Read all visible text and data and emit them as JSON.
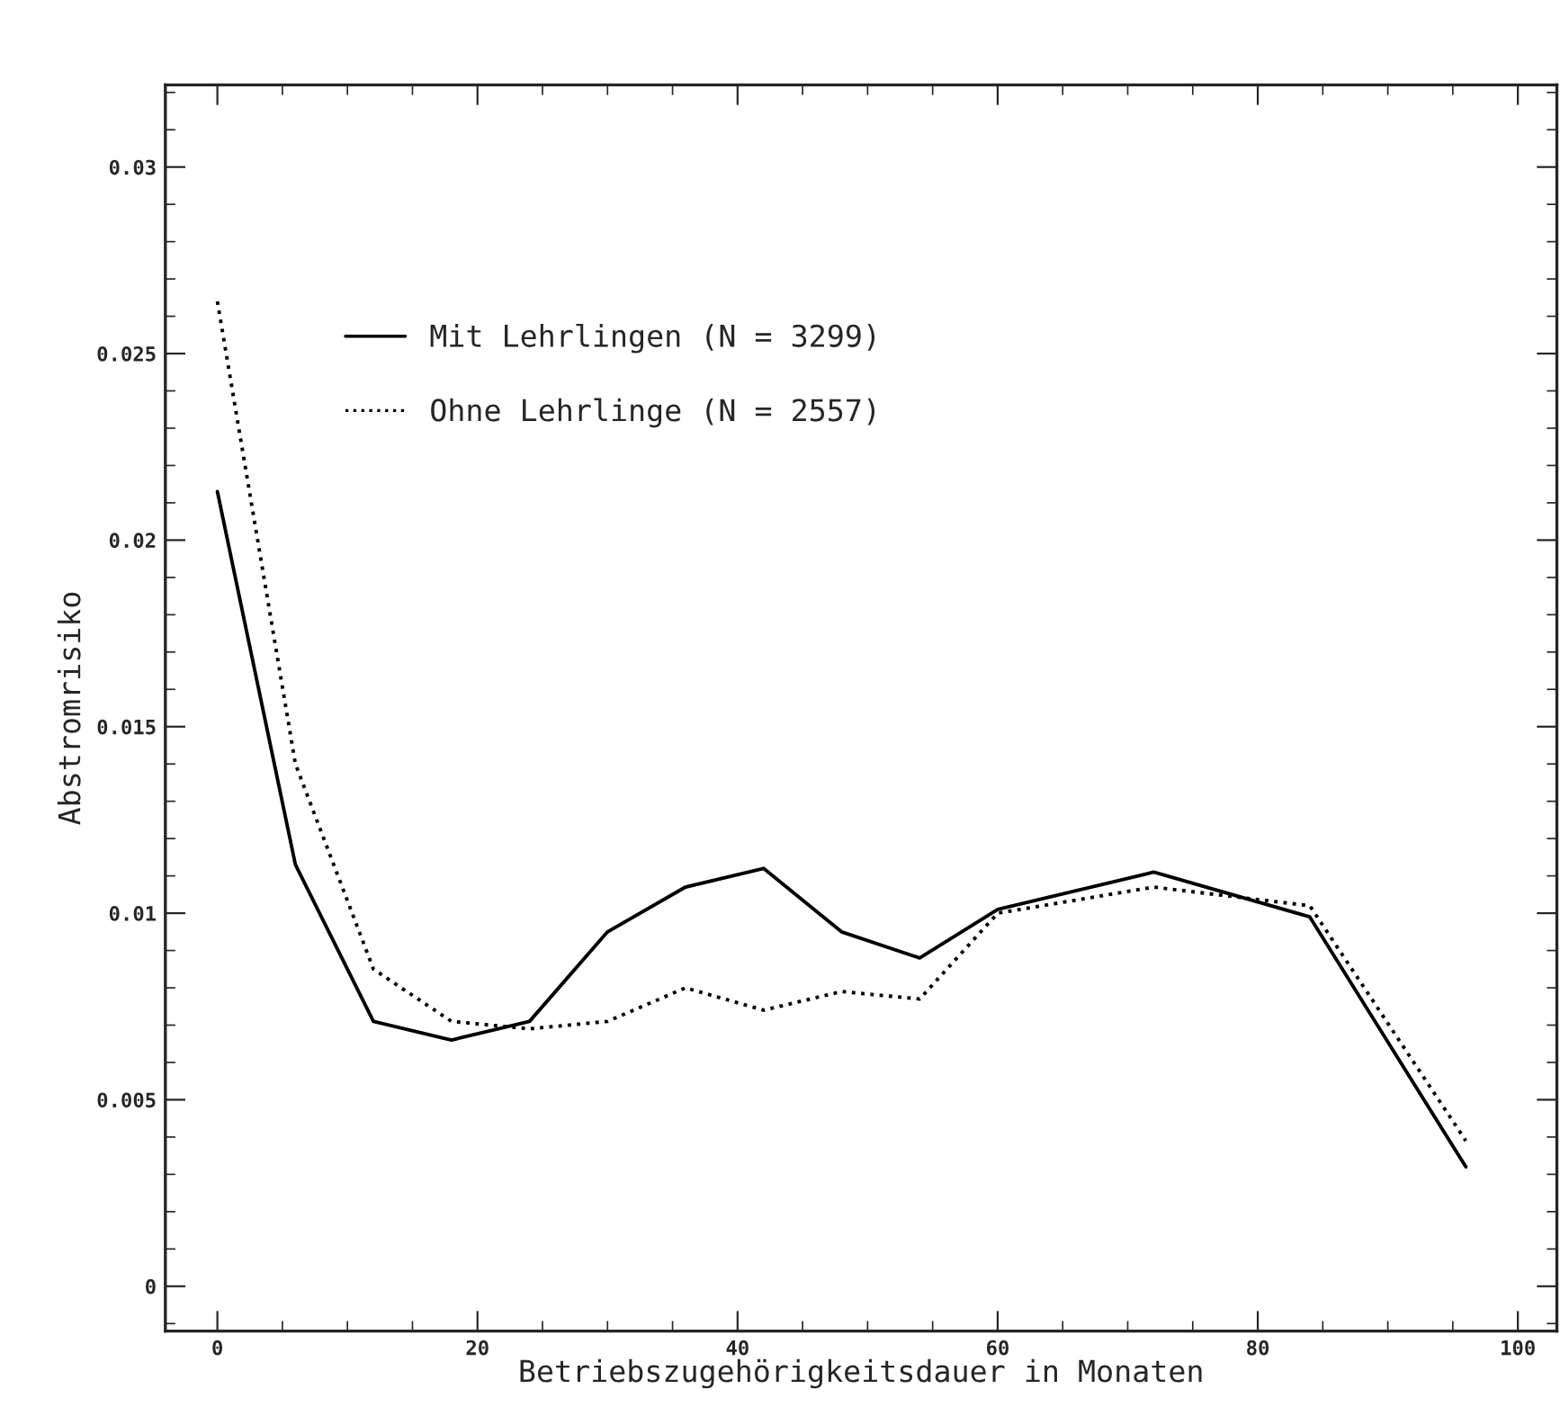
{
  "chart_data": {
    "type": "line",
    "xlabel": "Betriebszugehörigkeitsdauer in Monaten",
    "ylabel": "Abstromrisiko",
    "x": [
      0,
      6,
      12,
      18,
      24,
      30,
      36,
      42,
      48,
      54,
      60,
      72,
      84,
      96
    ],
    "series": [
      {
        "name": "Mit Lehrlingen (N = 3299)",
        "color": "#000000",
        "line_style": "solid",
        "values": [
          0.0213,
          0.0113,
          0.0071,
          0.0066,
          0.0071,
          0.0095,
          0.0107,
          0.0112,
          0.0095,
          0.0088,
          0.0101,
          0.0111,
          0.0099,
          0.0032
        ]
      },
      {
        "name": "Ohne Lehrlinge (N = 2557)",
        "color": "#000000",
        "line_style": "dotted",
        "values": [
          0.0264,
          0.014,
          0.0085,
          0.0071,
          0.0069,
          0.0071,
          0.008,
          0.0074,
          0.0079,
          0.0077,
          0.01,
          0.0107,
          0.0102,
          0.0039
        ]
      }
    ],
    "xlim": [
      -4,
      103
    ],
    "xticks": [
      0,
      20,
      40,
      60,
      80,
      100
    ],
    "ylim": [
      -0.0012,
      0.0322
    ],
    "yticks": [
      {
        "value": 0,
        "label": "0"
      },
      {
        "value": 0.005,
        "label": "0.005"
      },
      {
        "value": 0.01,
        "label": "0.01"
      },
      {
        "value": 0.015,
        "label": "0.015"
      },
      {
        "value": 0.02,
        "label": "0.02"
      },
      {
        "value": 0.025,
        "label": "0.025"
      },
      {
        "value": 0.03,
        "label": "0.03"
      }
    ],
    "grid": false,
    "legend": "top left",
    "marker": "none"
  }
}
